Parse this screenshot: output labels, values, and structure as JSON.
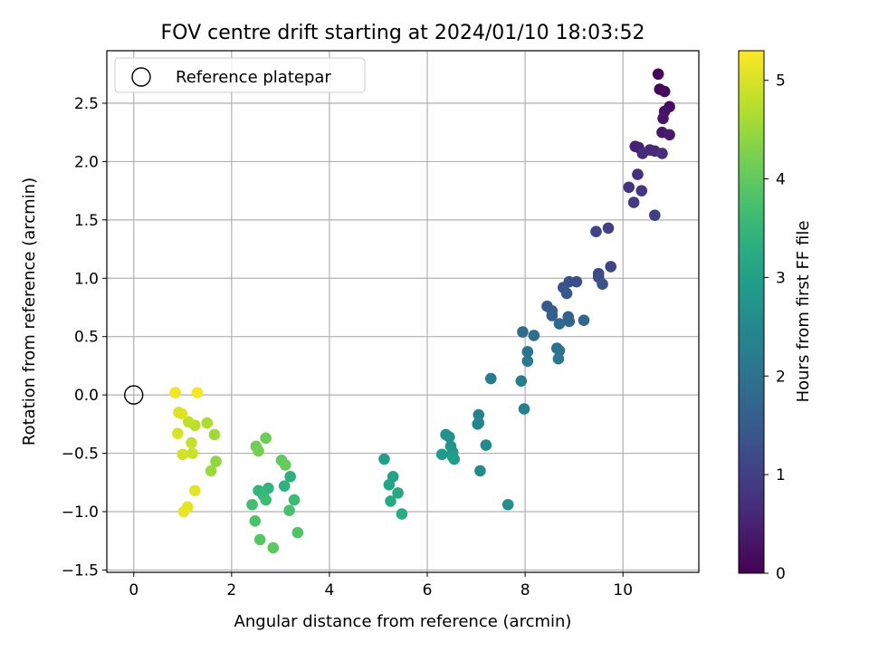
{
  "chart_data": {
    "type": "scatter",
    "title": "FOV centre drift starting at 2024/01/10 18:03:52",
    "xlabel": "Angular distance from reference (arcmin)",
    "ylabel": "Rotation from reference (arcmin)",
    "xlim": [
      -0.55,
      11.55
    ],
    "ylim": [
      -1.52,
      2.95
    ],
    "xticks": [
      0,
      2,
      4,
      6,
      8,
      10
    ],
    "yticks": [
      -1.5,
      -1.0,
      -0.5,
      0.0,
      0.5,
      1.0,
      1.5,
      2.0,
      2.5
    ],
    "xtick_labels": [
      "0",
      "2",
      "4",
      "6",
      "8",
      "10"
    ],
    "ytick_labels": [
      "−1.5",
      "−1.0",
      "−0.5",
      "0.0",
      "0.5",
      "1.0",
      "1.5",
      "2.0",
      "2.5"
    ],
    "grid": true,
    "colormap": "viridis",
    "legend": {
      "placement": "top-left",
      "entries": [
        "Reference platepar"
      ]
    },
    "reference_point": {
      "x": 0,
      "y": 0,
      "marker": "open-circle",
      "color": "#000000"
    },
    "colorbar": {
      "label": "Hours from first FF file",
      "range": [
        0,
        5.3
      ],
      "ticks": [
        0,
        1,
        2,
        3,
        4,
        5
      ],
      "tick_labels": [
        "0",
        "1",
        "2",
        "3",
        "4",
        "5"
      ]
    },
    "points": [
      {
        "x": 10.72,
        "y": 2.75,
        "c": 0.05
      },
      {
        "x": 10.75,
        "y": 2.62,
        "c": 0.1
      },
      {
        "x": 10.85,
        "y": 2.6,
        "c": 0.15
      },
      {
        "x": 10.95,
        "y": 2.47,
        "c": 0.2
      },
      {
        "x": 10.85,
        "y": 2.43,
        "c": 0.25
      },
      {
        "x": 10.82,
        "y": 2.37,
        "c": 0.3
      },
      {
        "x": 10.8,
        "y": 2.25,
        "c": 0.35
      },
      {
        "x": 10.95,
        "y": 2.23,
        "c": 0.4
      },
      {
        "x": 10.25,
        "y": 2.13,
        "c": 0.45
      },
      {
        "x": 10.32,
        "y": 2.12,
        "c": 0.5
      },
      {
        "x": 10.55,
        "y": 2.1,
        "c": 0.55
      },
      {
        "x": 10.65,
        "y": 2.09,
        "c": 0.6
      },
      {
        "x": 10.4,
        "y": 2.07,
        "c": 0.65
      },
      {
        "x": 10.8,
        "y": 2.07,
        "c": 0.7
      },
      {
        "x": 10.3,
        "y": 1.89,
        "c": 0.75
      },
      {
        "x": 10.12,
        "y": 1.78,
        "c": 0.8
      },
      {
        "x": 10.38,
        "y": 1.75,
        "c": 0.85
      },
      {
        "x": 10.22,
        "y": 1.65,
        "c": 0.9
      },
      {
        "x": 10.65,
        "y": 1.54,
        "c": 0.95
      },
      {
        "x": 9.7,
        "y": 1.43,
        "c": 1.0
      },
      {
        "x": 9.45,
        "y": 1.4,
        "c": 1.05
      },
      {
        "x": 9.75,
        "y": 1.1,
        "c": 1.1
      },
      {
        "x": 9.5,
        "y": 1.04,
        "c": 1.15
      },
      {
        "x": 9.5,
        "y": 1.01,
        "c": 1.2
      },
      {
        "x": 9.05,
        "y": 0.97,
        "c": 1.25
      },
      {
        "x": 8.9,
        "y": 0.97,
        "c": 1.3
      },
      {
        "x": 9.58,
        "y": 0.95,
        "c": 1.35
      },
      {
        "x": 8.78,
        "y": 0.92,
        "c": 1.4
      },
      {
        "x": 8.85,
        "y": 0.87,
        "c": 1.45
      },
      {
        "x": 8.45,
        "y": 0.76,
        "c": 1.5
      },
      {
        "x": 8.55,
        "y": 0.72,
        "c": 1.55
      },
      {
        "x": 8.55,
        "y": 0.68,
        "c": 1.6
      },
      {
        "x": 8.88,
        "y": 0.67,
        "c": 1.65
      },
      {
        "x": 8.9,
        "y": 0.63,
        "c": 1.7
      },
      {
        "x": 9.2,
        "y": 0.64,
        "c": 1.75
      },
      {
        "x": 8.7,
        "y": 0.61,
        "c": 1.8
      },
      {
        "x": 7.95,
        "y": 0.54,
        "c": 1.85
      },
      {
        "x": 8.18,
        "y": 0.51,
        "c": 1.9
      },
      {
        "x": 8.65,
        "y": 0.4,
        "c": 1.95
      },
      {
        "x": 8.7,
        "y": 0.38,
        "c": 2.0
      },
      {
        "x": 8.05,
        "y": 0.37,
        "c": 2.05
      },
      {
        "x": 8.68,
        "y": 0.31,
        "c": 2.1
      },
      {
        "x": 8.05,
        "y": 0.29,
        "c": 2.15
      },
      {
        "x": 7.3,
        "y": 0.14,
        "c": 2.2
      },
      {
        "x": 7.92,
        "y": 0.12,
        "c": 2.25
      },
      {
        "x": 7.98,
        "y": -0.12,
        "c": 2.3
      },
      {
        "x": 7.05,
        "y": -0.17,
        "c": 2.35
      },
      {
        "x": 7.05,
        "y": -0.24,
        "c": 2.4
      },
      {
        "x": 7.03,
        "y": -0.25,
        "c": 2.45
      },
      {
        "x": 7.2,
        "y": -0.43,
        "c": 2.5
      },
      {
        "x": 7.08,
        "y": -0.65,
        "c": 2.55
      },
      {
        "x": 7.65,
        "y": -0.94,
        "c": 2.6
      },
      {
        "x": 6.38,
        "y": -0.34,
        "c": 2.65
      },
      {
        "x": 6.45,
        "y": -0.36,
        "c": 2.7
      },
      {
        "x": 6.48,
        "y": -0.44,
        "c": 2.75
      },
      {
        "x": 6.52,
        "y": -0.49,
        "c": 2.8
      },
      {
        "x": 6.3,
        "y": -0.51,
        "c": 2.85
      },
      {
        "x": 6.52,
        "y": -0.53,
        "c": 2.9
      },
      {
        "x": 6.55,
        "y": -0.55,
        "c": 2.95
      },
      {
        "x": 5.12,
        "y": -0.55,
        "c": 3.0
      },
      {
        "x": 5.3,
        "y": -0.7,
        "c": 3.05
      },
      {
        "x": 5.22,
        "y": -0.77,
        "c": 3.1
      },
      {
        "x": 5.4,
        "y": -0.84,
        "c": 3.15
      },
      {
        "x": 5.25,
        "y": -0.91,
        "c": 3.2
      },
      {
        "x": 5.48,
        "y": -1.02,
        "c": 3.25
      },
      {
        "x": 3.2,
        "y": -0.7,
        "c": 3.35
      },
      {
        "x": 3.08,
        "y": -0.78,
        "c": 3.4
      },
      {
        "x": 2.75,
        "y": -0.8,
        "c": 3.45
      },
      {
        "x": 2.55,
        "y": -0.82,
        "c": 3.5
      },
      {
        "x": 2.65,
        "y": -0.86,
        "c": 3.55
      },
      {
        "x": 3.28,
        "y": -0.9,
        "c": 3.6
      },
      {
        "x": 2.7,
        "y": -0.9,
        "c": 3.65
      },
      {
        "x": 2.42,
        "y": -0.94,
        "c": 3.7
      },
      {
        "x": 3.18,
        "y": -0.99,
        "c": 3.75
      },
      {
        "x": 2.48,
        "y": -1.08,
        "c": 3.8
      },
      {
        "x": 3.35,
        "y": -1.18,
        "c": 3.85
      },
      {
        "x": 2.58,
        "y": -1.24,
        "c": 3.9
      },
      {
        "x": 2.85,
        "y": -1.31,
        "c": 3.95
      },
      {
        "x": 3.02,
        "y": -0.56,
        "c": 4.0
      },
      {
        "x": 3.1,
        "y": -0.6,
        "c": 4.05
      },
      {
        "x": 2.7,
        "y": -0.37,
        "c": 4.1
      },
      {
        "x": 2.5,
        "y": -0.44,
        "c": 4.15
      },
      {
        "x": 2.55,
        "y": -0.48,
        "c": 4.2
      },
      {
        "x": 1.68,
        "y": -0.57,
        "c": 4.4
      },
      {
        "x": 1.58,
        "y": -0.65,
        "c": 4.5
      },
      {
        "x": 1.65,
        "y": -0.34,
        "c": 4.55
      },
      {
        "x": 1.5,
        "y": -0.24,
        "c": 4.65
      },
      {
        "x": 1.25,
        "y": -0.26,
        "c": 4.75
      },
      {
        "x": 1.12,
        "y": -0.23,
        "c": 4.8
      },
      {
        "x": 1.18,
        "y": -0.41,
        "c": 4.85
      },
      {
        "x": 1.2,
        "y": -0.5,
        "c": 4.9
      },
      {
        "x": 1.0,
        "y": -0.51,
        "c": 4.95
      },
      {
        "x": 0.9,
        "y": -0.33,
        "c": 5.0
      },
      {
        "x": 0.92,
        "y": -0.15,
        "c": 5.02
      },
      {
        "x": 0.98,
        "y": -0.16,
        "c": 5.05
      },
      {
        "x": 1.25,
        "y": -0.82,
        "c": 5.08
      },
      {
        "x": 1.1,
        "y": -0.96,
        "c": 5.1
      },
      {
        "x": 1.02,
        "y": -1.0,
        "c": 5.13
      },
      {
        "x": 0.85,
        "y": 0.02,
        "c": 5.2
      },
      {
        "x": 1.3,
        "y": 0.02,
        "c": 5.25
      }
    ]
  }
}
